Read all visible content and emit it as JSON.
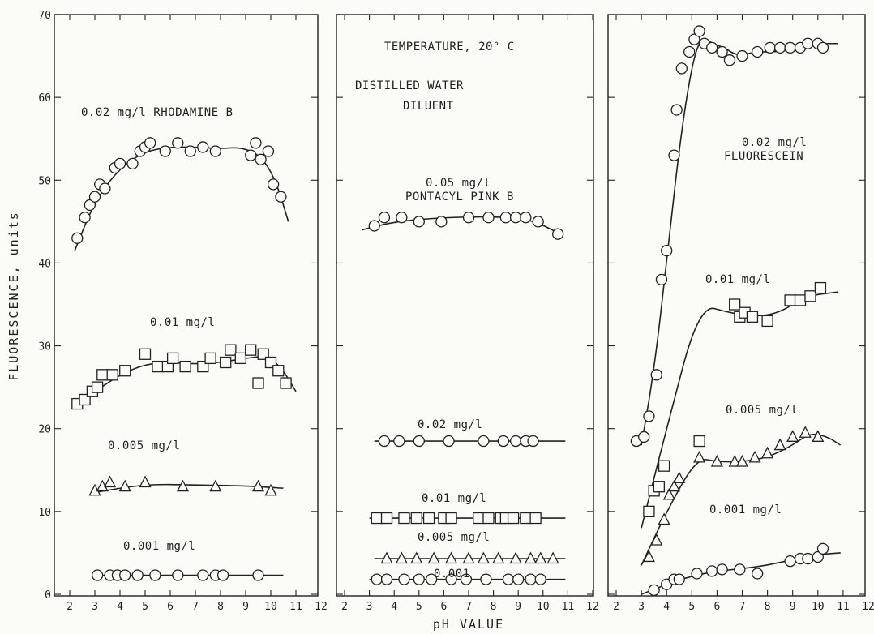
{
  "chart_data": {
    "type": "scatter",
    "ylabel": "FLUORESCENCE, units",
    "xlabel": "pH VALUE",
    "ylim": [
      0,
      70
    ],
    "y_ticks": [
      "0",
      "10",
      "20",
      "30",
      "40",
      "50",
      "60",
      "70"
    ],
    "panels": [
      {
        "xlim": [
          2,
          12
        ],
        "x_ticks": [
          "2",
          "3",
          "4",
          "5",
          "6",
          "7",
          "8",
          "9",
          "10",
          "11",
          "12"
        ],
        "annotations": [],
        "series": [
          {
            "label": "0.02 mg/l RHODAMINE B",
            "marker": "circle",
            "x": [
              2.3,
              2.6,
              2.8,
              3.0,
              3.2,
              3.4,
              3.8,
              4.0,
              4.5,
              4.8,
              5.0,
              5.2,
              5.8,
              6.3,
              6.8,
              7.3,
              7.8,
              9.2,
              9.4,
              9.6,
              9.9,
              10.1,
              10.4
            ],
            "y": [
              43,
              45.5,
              47,
              48,
              49.5,
              49,
              51.5,
              52,
              52,
              53.5,
              54,
              54.5,
              53.5,
              54.5,
              53.5,
              54,
              53.5,
              53,
              54.5,
              52.5,
              53.5,
              49.5,
              48
            ],
            "fit_x": [
              2.2,
              3,
              4,
              5,
              6,
              7,
              8,
              8.8,
              9.6,
              10.2,
              10.7
            ],
            "fit_y": [
              41.5,
              47.5,
              51.5,
              53.5,
              54,
              54,
              53.8,
              54,
              53,
              50,
              45
            ]
          },
          {
            "label": "0.01 mg/l",
            "marker": "square",
            "x": [
              2.3,
              2.6,
              2.9,
              3.1,
              3.3,
              3.7,
              4.2,
              5.0,
              5.5,
              5.9,
              6.1,
              6.6,
              7.3,
              7.6,
              8.2,
              8.4,
              8.8,
              9.2,
              9.5,
              9.7,
              10.0,
              10.3,
              10.6
            ],
            "y": [
              23,
              23.5,
              24.5,
              25,
              26.5,
              26.5,
              27,
              29,
              27.5,
              27.5,
              28.5,
              27.5,
              27.5,
              28.5,
              28,
              29.5,
              28.5,
              29.5,
              25.5,
              29,
              28,
              27,
              25.5
            ],
            "fit_x": [
              2.2,
              3,
              4,
              5,
              6,
              7,
              8,
              9,
              9.8,
              10.4,
              11
            ],
            "fit_y": [
              22.5,
              24.5,
              26.5,
              27.8,
              28,
              27.8,
              28,
              28.5,
              28.8,
              27.5,
              24.5
            ],
            "label_text": "0.01 mg/l"
          },
          {
            "label": "0.005 mg/l",
            "marker": "triangle",
            "x": [
              3.0,
              3.3,
              3.6,
              4.2,
              5.0,
              6.5,
              7.8,
              9.5,
              10.0
            ],
            "y": [
              12.5,
              13,
              13.5,
              13,
              13.5,
              13,
              13,
              13,
              12.5
            ],
            "fit_x": [
              3.0,
              5.0,
              7.0,
              9.0,
              10.5
            ],
            "fit_y": [
              12.3,
              13.3,
              13.2,
              13.1,
              12.8
            ]
          },
          {
            "label": "0.001 mg/l",
            "marker": "circle",
            "x": [
              3.1,
              3.6,
              3.9,
              4.2,
              4.7,
              5.4,
              6.3,
              7.3,
              7.8,
              8.1,
              9.5
            ],
            "y": [
              2.3,
              2.3,
              2.3,
              2.3,
              2.3,
              2.3,
              2.3,
              2.3,
              2.3,
              2.3,
              2.3
            ],
            "fit_x": [
              3.0,
              10.5
            ],
            "fit_y": [
              2.3,
              2.3
            ]
          }
        ]
      },
      {
        "xlim": [
          2,
          12
        ],
        "x_ticks": [
          "2",
          "3",
          "4",
          "5",
          "6",
          "7",
          "8",
          "9",
          "10",
          "11",
          "12"
        ],
        "annotations": [
          "TEMPERATURE, 20° C",
          "DISTILLED WATER",
          "DILUENT"
        ],
        "series": [
          {
            "label": "0.05 mg/l",
            "label2": "PONTACYL PINK B",
            "marker": "circle",
            "x": [
              3.2,
              3.6,
              4.3,
              5.0,
              5.9,
              7.0,
              7.8,
              8.5,
              8.9,
              9.3,
              9.8,
              10.6
            ],
            "y": [
              44.5,
              45.5,
              45.5,
              45,
              45,
              45.5,
              45.5,
              45.5,
              45.5,
              45.5,
              45,
              43.5
            ],
            "fit_x": [
              2.7,
              4,
              6,
              8,
              9.5,
              10.7
            ],
            "fit_y": [
              44,
              45,
              45.5,
              45.6,
              45.3,
              43.5
            ]
          },
          {
            "label": "0.02 mg/l",
            "marker": "circle",
            "x": [
              3.6,
              4.2,
              5.0,
              6.2,
              7.6,
              8.4,
              8.9,
              9.3,
              9.6
            ],
            "y": [
              18.5,
              18.5,
              18.5,
              18.5,
              18.5,
              18.5,
              18.5,
              18.5,
              18.5
            ],
            "fit_x": [
              3.2,
              10.9
            ],
            "fit_y": [
              18.5,
              18.5
            ]
          },
          {
            "label": "0.01 mg/l",
            "marker": "square",
            "x": [
              3.3,
              3.7,
              4.4,
              4.9,
              5.4,
              6.0,
              6.3,
              7.4,
              7.8,
              8.3,
              8.5,
              8.8,
              9.3,
              9.7
            ],
            "y": [
              9.2,
              9.2,
              9.2,
              9.2,
              9.2,
              9.2,
              9.2,
              9.2,
              9.2,
              9.2,
              9.2,
              9.2,
              9.2,
              9.2
            ],
            "fit_x": [
              3.0,
              10.9
            ],
            "fit_y": [
              9.2,
              9.2
            ]
          },
          {
            "label": "0.005 mg/l",
            "marker": "triangle",
            "x": [
              3.7,
              4.3,
              4.9,
              5.6,
              6.3,
              7.0,
              7.6,
              8.2,
              8.9,
              9.5,
              9.9,
              10.4
            ],
            "y": [
              4.3,
              4.3,
              4.3,
              4.3,
              4.3,
              4.3,
              4.3,
              4.3,
              4.3,
              4.3,
              4.3,
              4.3
            ],
            "fit_x": [
              3.2,
              10.9
            ],
            "fit_y": [
              4.3,
              4.3
            ]
          },
          {
            "label": "0.001",
            "marker": "circle",
            "x": [
              3.3,
              3.7,
              4.4,
              5.0,
              5.5,
              6.3,
              6.9,
              7.7,
              8.6,
              9.0,
              9.5,
              9.9
            ],
            "y": [
              1.8,
              1.8,
              1.8,
              1.8,
              1.8,
              1.8,
              1.8,
              1.8,
              1.8,
              1.8,
              1.8,
              1.8
            ],
            "fit_x": [
              3.0,
              10.9
            ],
            "fit_y": [
              1.8,
              1.8
            ]
          }
        ]
      },
      {
        "xlim": [
          2,
          12
        ],
        "x_ticks": [
          "2",
          "3",
          "4",
          "5",
          "6",
          "7",
          "8",
          "9",
          "10",
          "11",
          "12"
        ],
        "annotations": [],
        "series": [
          {
            "label": "0.02 mg/l",
            "label2": "FLUORESCEIN",
            "marker": "circle",
            "x": [
              2.8,
              3.1,
              3.3,
              3.6,
              3.8,
              4.0,
              4.3,
              4.4,
              4.6,
              4.9,
              5.1,
              5.3,
              5.5,
              5.8,
              6.2,
              6.5,
              7.0,
              7.6,
              8.1,
              8.5,
              8.9,
              9.3,
              9.6,
              10.0,
              10.2
            ],
            "y": [
              18.5,
              19,
              21.5,
              26.5,
              38,
              41.5,
              53,
              58.5,
              63.5,
              65.5,
              67,
              68,
              66.5,
              66,
              65.5,
              64.5,
              65,
              65.5,
              66,
              66,
              66,
              66,
              66.5,
              66.5,
              66
            ],
            "fit_x": [
              3.0,
              3.5,
              4.0,
              4.5,
              5.0,
              5.4,
              5.8,
              6.3,
              6.8,
              7.5,
              8.5,
              9.3,
              10.0,
              10.8
            ],
            "fit_y": [
              18,
              27,
              40,
              54,
              64,
              67.5,
              66.5,
              66,
              65,
              65.5,
              65.5,
              66,
              66.5,
              66.5
            ],
            "label_text": "0.02 mg/l"
          },
          {
            "label": "0.01 mg/l",
            "marker": "square",
            "x": [
              3.3,
              3.5,
              3.7,
              3.9,
              5.3,
              6.7,
              6.9,
              7.1,
              7.4,
              8.0,
              8.9,
              9.3,
              9.7,
              10.1
            ],
            "y": [
              10,
              12.5,
              13,
              15.5,
              18.5,
              35,
              33.5,
              34,
              33.5,
              33,
              35.5,
              35.5,
              36,
              37
            ],
            "fit_x": [
              3.0,
              4.0,
              5.3,
              6.5,
              7.5,
              8.5,
              9.5,
              10.8
            ],
            "fit_y": [
              8,
              20,
              35,
              34,
              33.5,
              34,
              36,
              36.5
            ]
          },
          {
            "label": "0.005 mg/l",
            "marker": "triangle",
            "x": [
              3.3,
              3.6,
              3.9,
              4.1,
              4.3,
              4.5,
              5.3,
              6.0,
              6.7,
              7.0,
              7.5,
              8.0,
              8.5,
              9.0,
              9.5,
              10.0
            ],
            "y": [
              4.5,
              6.5,
              9,
              12,
              13,
              14,
              16.5,
              16,
              16,
              16,
              16.5,
              17,
              18,
              19,
              19.5,
              19
            ],
            "fit_x": [
              3.0,
              4.0,
              5.2,
              6.0,
              7.0,
              8.0,
              9.0,
              9.7,
              10.4,
              10.9
            ],
            "fit_y": [
              3.5,
              10,
              16.5,
              16,
              16,
              16.5,
              18,
              19.5,
              19,
              18
            ]
          },
          {
            "label": "0.001 mg/l",
            "marker": "circle",
            "x": [
              3.5,
              4.0,
              4.3,
              4.5,
              5.2,
              5.8,
              6.2,
              6.9,
              7.6,
              8.9,
              9.3,
              9.6,
              10.0,
              10.2
            ],
            "y": [
              0.5,
              1.2,
              1.8,
              1.8,
              2.5,
              2.8,
              3.0,
              3.0,
              2.5,
              4.0,
              4.3,
              4.3,
              4.5,
              5.5
            ],
            "fit_x": [
              3.0,
              4.0,
              5.0,
              6.0,
              7.0,
              8.0,
              9.0,
              10.0,
              10.9
            ],
            "fit_y": [
              0,
              1.2,
              2.2,
              2.8,
              3.1,
              3.5,
              4.2,
              4.8,
              5.0
            ]
          }
        ]
      }
    ]
  }
}
